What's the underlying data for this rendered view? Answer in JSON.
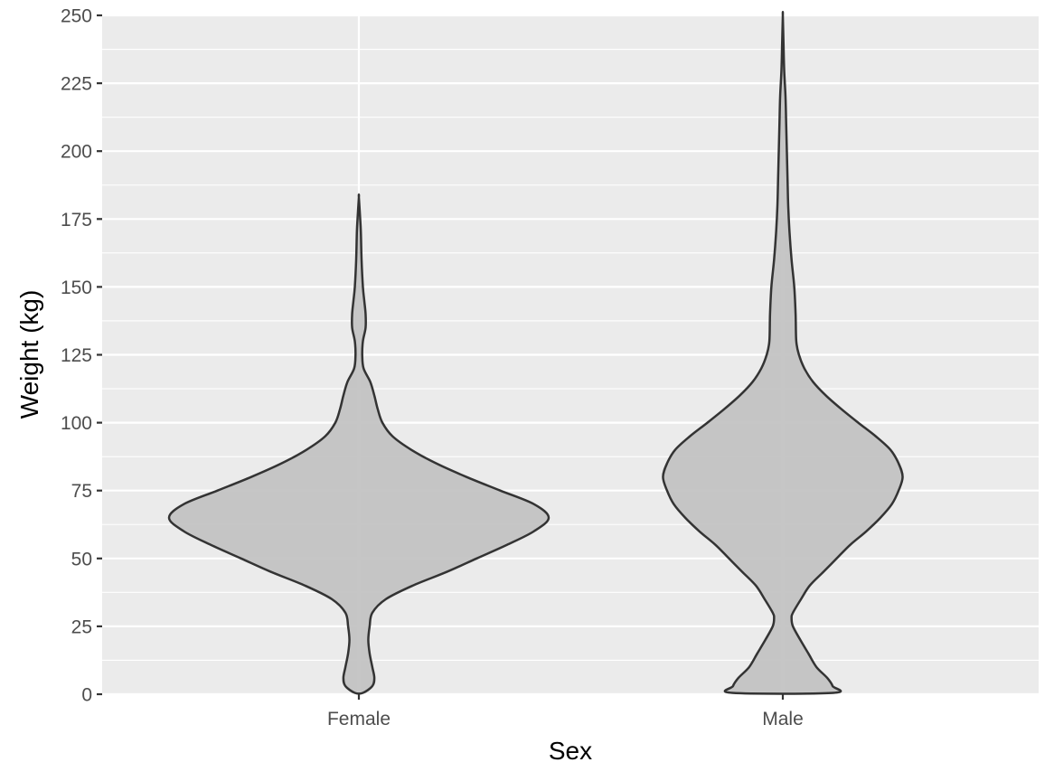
{
  "chart_data": {
    "type": "violin",
    "xlabel": "Sex",
    "ylabel": "Weight (kg)",
    "categories": [
      "Female",
      "Male"
    ],
    "ylim": [
      0,
      250
    ],
    "yticks": [
      0,
      25,
      50,
      75,
      100,
      125,
      150,
      175,
      200,
      225,
      250
    ],
    "grid": true,
    "legend": "none",
    "colors": {
      "panel": "#ebebeb",
      "grid": "#ffffff",
      "violin_fill": "#c3c3c3",
      "violin_outline": "#333333"
    },
    "violins": [
      {
        "category": "Female",
        "y_min": 0.5,
        "y_max": 183,
        "density_profile": [
          [
            0.5,
            0.06
          ],
          [
            3,
            0.2
          ],
          [
            6,
            0.23
          ],
          [
            10,
            0.2
          ],
          [
            15,
            0.16
          ],
          [
            20,
            0.14
          ],
          [
            25,
            0.16
          ],
          [
            30,
            0.2
          ],
          [
            35,
            0.4
          ],
          [
            40,
            0.8
          ],
          [
            45,
            1.3
          ],
          [
            50,
            1.75
          ],
          [
            55,
            2.2
          ],
          [
            60,
            2.6
          ],
          [
            65,
            2.82
          ],
          [
            70,
            2.6
          ],
          [
            75,
            2.1
          ],
          [
            80,
            1.6
          ],
          [
            85,
            1.15
          ],
          [
            90,
            0.78
          ],
          [
            95,
            0.5
          ],
          [
            100,
            0.35
          ],
          [
            105,
            0.28
          ],
          [
            110,
            0.23
          ],
          [
            115,
            0.17
          ],
          [
            120,
            0.07
          ],
          [
            125,
            0.05
          ],
          [
            130,
            0.06
          ],
          [
            135,
            0.1
          ],
          [
            140,
            0.1
          ],
          [
            145,
            0.08
          ],
          [
            150,
            0.06
          ],
          [
            160,
            0.04
          ],
          [
            170,
            0.03
          ],
          [
            175,
            0.02
          ],
          [
            183,
            0.0
          ]
        ]
      },
      {
        "category": "Male",
        "y_min": 0.5,
        "y_max": 250,
        "density_profile": [
          [
            0.5,
            0.75
          ],
          [
            3,
            0.74
          ],
          [
            6,
            0.66
          ],
          [
            10,
            0.5
          ],
          [
            15,
            0.38
          ],
          [
            20,
            0.26
          ],
          [
            25,
            0.15
          ],
          [
            28,
            0.13
          ],
          [
            30,
            0.15
          ],
          [
            35,
            0.27
          ],
          [
            40,
            0.4
          ],
          [
            45,
            0.6
          ],
          [
            50,
            0.8
          ],
          [
            55,
            1.0
          ],
          [
            60,
            1.24
          ],
          [
            65,
            1.45
          ],
          [
            70,
            1.62
          ],
          [
            75,
            1.72
          ],
          [
            80,
            1.78
          ],
          [
            85,
            1.72
          ],
          [
            90,
            1.6
          ],
          [
            95,
            1.38
          ],
          [
            100,
            1.12
          ],
          [
            105,
            0.87
          ],
          [
            110,
            0.64
          ],
          [
            115,
            0.45
          ],
          [
            120,
            0.32
          ],
          [
            125,
            0.24
          ],
          [
            130,
            0.2
          ],
          [
            140,
            0.19
          ],
          [
            150,
            0.17
          ],
          [
            160,
            0.13
          ],
          [
            170,
            0.1
          ],
          [
            180,
            0.08
          ],
          [
            190,
            0.07
          ],
          [
            200,
            0.06
          ],
          [
            210,
            0.05
          ],
          [
            220,
            0.04
          ],
          [
            230,
            0.02
          ],
          [
            240,
            0.01
          ],
          [
            250,
            0.0
          ]
        ]
      }
    ]
  }
}
